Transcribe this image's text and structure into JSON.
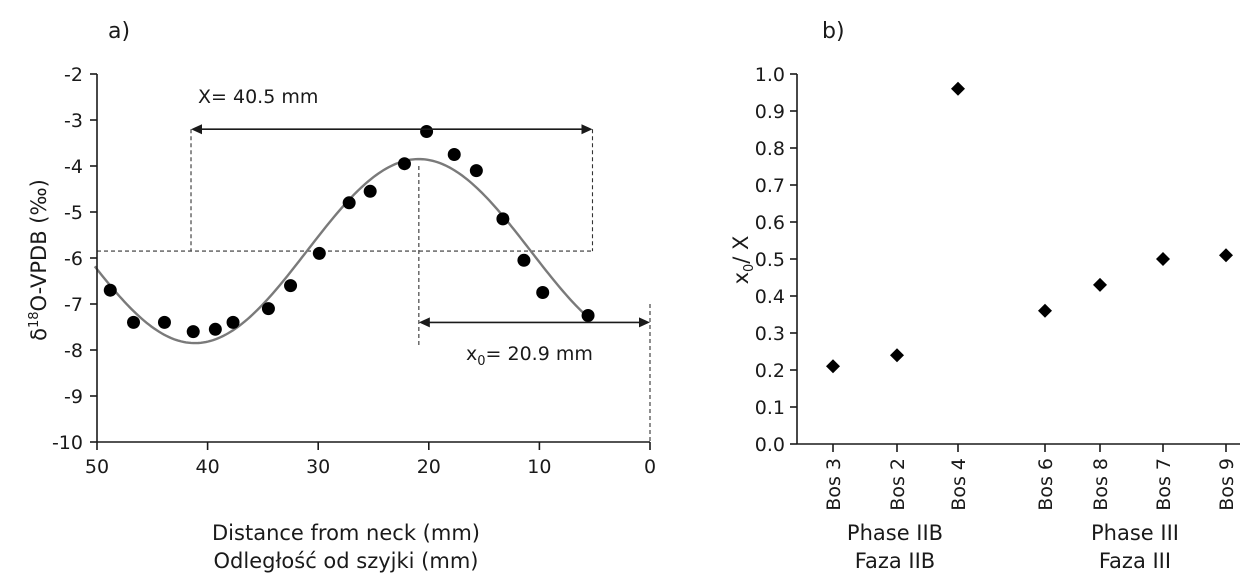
{
  "chart_data": [
    {
      "panel_label": "a)",
      "type": "scatter",
      "xlabel": [
        "Distance from neck (mm)",
        "Odległość od szyjki (mm)"
      ],
      "ylabel": "δ18O-VPDB (‰)",
      "ylabel_parts": [
        "δ",
        "18",
        "O-VPDB  (‰)"
      ],
      "xlim": [
        50,
        0
      ],
      "ylim": [
        -10,
        -2
      ],
      "x_reversed": true,
      "xticks": [
        50,
        40,
        30,
        20,
        10,
        0
      ],
      "yticks": [
        -2,
        -3,
        -4,
        -5,
        -6,
        -7,
        -8,
        -9,
        -10
      ],
      "series": [
        {
          "x": [
            48.8,
            46.7,
            43.9,
            41.3,
            39.3,
            37.7,
            34.5,
            32.5,
            29.9,
            27.2,
            25.3,
            22.2,
            20.2,
            17.7,
            15.7,
            13.3,
            11.4,
            9.7,
            5.6
          ],
          "y": [
            -6.7,
            -7.4,
            -7.4,
            -7.6,
            -7.55,
            -7.4,
            -7.1,
            -6.6,
            -5.9,
            -4.8,
            -4.55,
            -3.95,
            -3.25,
            -3.75,
            -4.1,
            -5.15,
            -6.05,
            -6.75,
            -7.25
          ]
        }
      ],
      "fit_curve": {
        "form": "sinusoid",
        "mean": -5.85,
        "amplitude": 2.0,
        "period_mm": 40.5,
        "peak_x": 20.9,
        "x_range": [
          50.2,
          5.6
        ]
      },
      "annotations": {
        "period_label": "X= 40.5 mm",
        "x0_label_main": "x",
        "x0_label_sub": "0",
        "x0_label_rest": "= 20.9 mm",
        "period_from": 41.5,
        "period_to": 5.2,
        "x0_from": 20.9,
        "x0_to": 0,
        "mean_line_y": -5.85
      }
    },
    {
      "panel_label": "b)",
      "type": "scatter",
      "ylabel_parts": [
        "x",
        "0",
        "/ X"
      ],
      "ylim": [
        0.0,
        1.0
      ],
      "yticks": [
        "0.0",
        "0.1",
        "0.2",
        "0.3",
        "0.4",
        "0.5",
        "0.6",
        "0.7",
        "0.8",
        "0.9",
        "1.0"
      ],
      "categories": [
        "Bos 3",
        "Bos 2",
        "Bos 4",
        "Bos 6",
        "Bos 8",
        "Bos 7",
        "Bos 9"
      ],
      "values": [
        0.21,
        0.24,
        0.96,
        0.36,
        0.43,
        0.5,
        0.51
      ],
      "groups": [
        {
          "labels": [
            "Phase IIB",
            "Faza IIB"
          ],
          "members": [
            "Bos 3",
            "Bos 2",
            "Bos 4"
          ]
        },
        {
          "labels": [
            "Phase III",
            "Faza III"
          ],
          "members": [
            "Bos 6",
            "Bos 8",
            "Bos 7",
            "Bos 9"
          ]
        }
      ]
    }
  ]
}
